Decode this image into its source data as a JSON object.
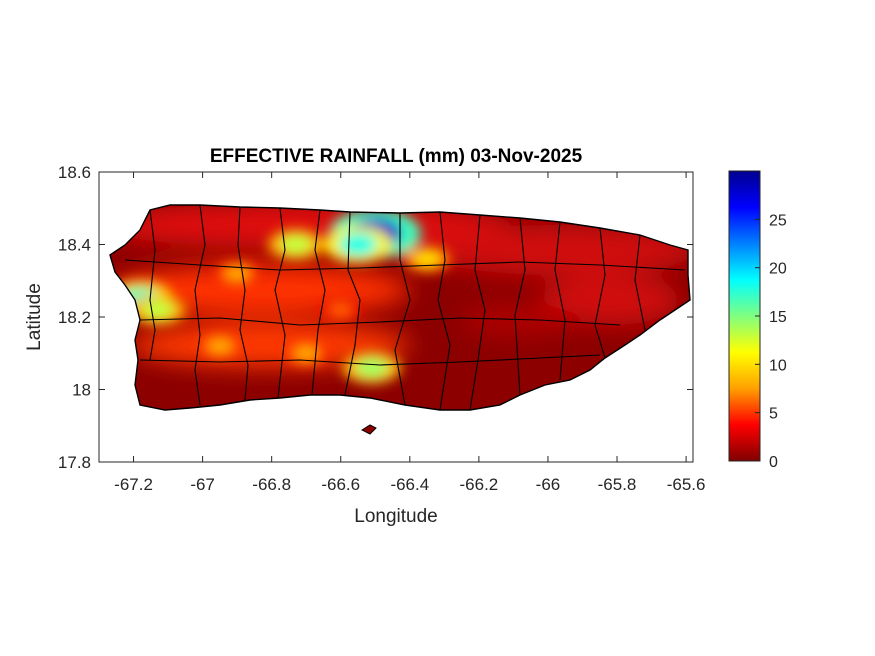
{
  "chart_data": {
    "type": "heatmap",
    "title": "EFFECTIVE RAINFALL (mm) 03-Nov-2025",
    "xlabel": "Longitude",
    "ylabel": "Latitude",
    "xlim": [
      -67.3,
      -65.58
    ],
    "ylim": [
      17.8,
      18.6
    ],
    "xticks": [
      -67.2,
      -67,
      -66.8,
      -66.6,
      -66.4,
      -66.2,
      -66,
      -65.8,
      -65.6
    ],
    "xtick_labels": [
      "-67.2",
      "-67",
      "-66.8",
      "-66.6",
      "-66.4",
      "-66.2",
      "-66",
      "-65.8",
      "-65.6"
    ],
    "yticks": [
      17.8,
      18,
      18.2,
      18.4,
      18.6
    ],
    "ytick_labels": [
      "17.8",
      "18",
      "18.2",
      "18.4",
      "18.6"
    ],
    "colorbar": {
      "colormap": "jet-reversed",
      "range": [
        0,
        30
      ],
      "ticks": [
        0,
        5,
        10,
        15,
        20,
        25
      ],
      "tick_labels": [
        "0",
        "5",
        "10",
        "15",
        "20",
        "25"
      ],
      "colors": [
        "#800000",
        "#ff0000",
        "#ffa000",
        "#ffff00",
        "#80ff80",
        "#00ffff",
        "#0080ff",
        "#0000ff",
        "#000090"
      ]
    },
    "grid": false,
    "hotspots": [
      {
        "lon": -66.5,
        "lat": 18.43,
        "value": 28
      },
      {
        "lon": -66.55,
        "lat": 18.4,
        "value": 18
      },
      {
        "lon": -67.18,
        "lat": 18.25,
        "value": 17
      },
      {
        "lon": -67.13,
        "lat": 18.22,
        "value": 13
      },
      {
        "lon": -66.73,
        "lat": 18.4,
        "value": 13
      },
      {
        "lon": -66.51,
        "lat": 18.06,
        "value": 14
      },
      {
        "lon": -66.35,
        "lat": 18.36,
        "value": 10
      },
      {
        "lon": -66.9,
        "lat": 18.32,
        "value": 8
      },
      {
        "lon": -66.95,
        "lat": 18.12,
        "value": 8
      },
      {
        "lon": -66.7,
        "lat": 18.1,
        "value": 8
      },
      {
        "lon": -66.6,
        "lat": 18.22,
        "value": 6
      }
    ]
  }
}
